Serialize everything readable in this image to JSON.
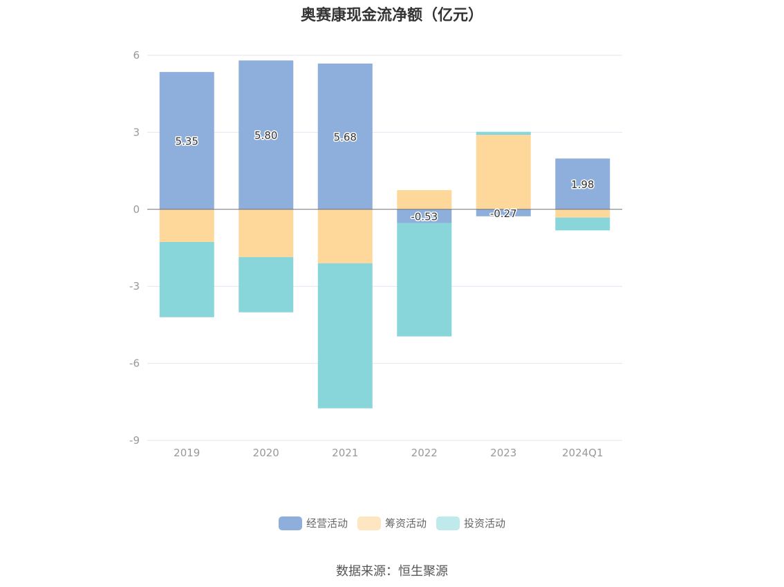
{
  "chart_data": {
    "type": "bar",
    "stacked": true,
    "title": "奥赛康现金流净额（亿元）",
    "categories": [
      "2019",
      "2020",
      "2021",
      "2022",
      "2023",
      "2024Q1"
    ],
    "ylim": [
      -9,
      6
    ],
    "yticks": [
      "6",
      "3",
      "0",
      "-3",
      "-6",
      "-9"
    ],
    "ytick_values": [
      6,
      3,
      0,
      -3,
      -6,
      -9
    ],
    "grid": true,
    "legend_position": "bottom",
    "series": [
      {
        "name": "经营活动",
        "color": "#8eaedb",
        "values": [
          5.35,
          5.8,
          5.68,
          -0.53,
          -0.27,
          1.98
        ],
        "labels": [
          "5.35",
          "5.80",
          "5.68",
          "-0.53",
          "-0.27",
          "1.98"
        ]
      },
      {
        "name": "筹资活动",
        "color": "#fed89b",
        "values": [
          -1.27,
          -1.86,
          -2.1,
          0.75,
          2.9,
          -0.32
        ],
        "labels": [
          "",
          "",
          "",
          "",
          "",
          ""
        ]
      },
      {
        "name": "投资活动",
        "color": "#88d5da",
        "values": [
          -2.93,
          -2.15,
          -5.65,
          -4.42,
          0.12,
          -0.5
        ],
        "labels": [
          "",
          "",
          "",
          "",
          "",
          ""
        ]
      }
    ]
  },
  "legend_colors": {
    "s0": "#8eaedb",
    "s1": "#fee6c3",
    "s2": "#c0e9ec"
  },
  "source_text": "数据来源：恒生聚源"
}
